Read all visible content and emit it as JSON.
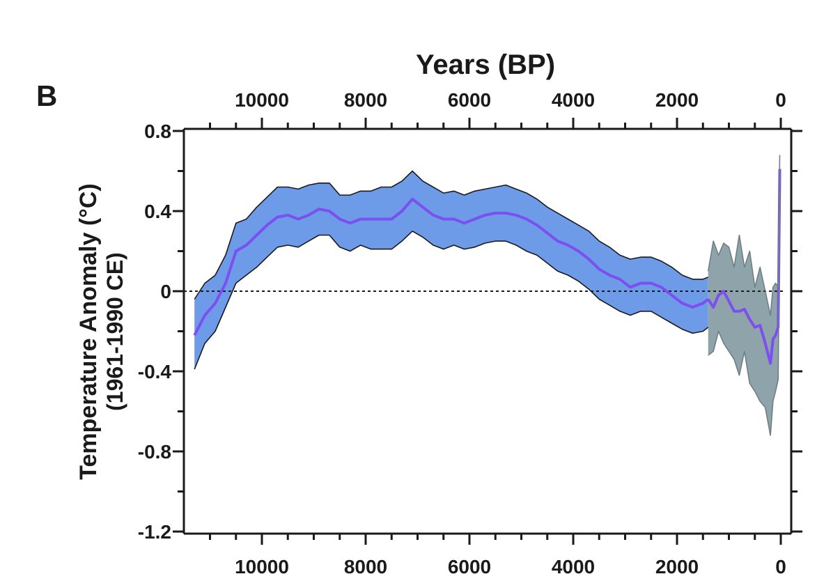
{
  "chart_data": {
    "type": "area",
    "panel_label": "B",
    "title": "Years (BP)",
    "xlabel": "",
    "ylabel": [
      "Temperature Anomaly (°C)",
      "(1961-1990 CE)"
    ],
    "x_ticks": [
      10000,
      8000,
      6000,
      4000,
      2000,
      0
    ],
    "y_ticks": [
      0.8,
      0.4,
      0,
      -0.4,
      -0.8,
      -1.2
    ],
    "y_tick_labels": [
      "0.8",
      "0.4",
      "0",
      "-0.4",
      "-0.8",
      "-1.2"
    ],
    "xlim": [
      11500,
      -100
    ],
    "ylim": [
      -1.2,
      0.8
    ],
    "x_reversed": true,
    "reference_line": 0,
    "series": [
      {
        "role": "holocene-mean",
        "color": "#7b4ff0",
        "x": [
          11300,
          11100,
          10900,
          10700,
          10500,
          10300,
          10100,
          9900,
          9700,
          9500,
          9300,
          9100,
          8900,
          8700,
          8500,
          8300,
          8100,
          7900,
          7700,
          7500,
          7300,
          7100,
          6900,
          6700,
          6500,
          6300,
          6100,
          5900,
          5700,
          5500,
          5300,
          5100,
          4900,
          4700,
          4500,
          4300,
          4100,
          3900,
          3700,
          3500,
          3300,
          3100,
          2900,
          2700,
          2500,
          2300,
          2100,
          1900,
          1700,
          1500,
          1400
        ],
        "values": [
          -0.22,
          -0.12,
          -0.06,
          0.04,
          0.2,
          0.23,
          0.28,
          0.33,
          0.37,
          0.38,
          0.36,
          0.38,
          0.41,
          0.4,
          0.36,
          0.34,
          0.36,
          0.36,
          0.36,
          0.36,
          0.4,
          0.46,
          0.42,
          0.38,
          0.36,
          0.36,
          0.34,
          0.36,
          0.38,
          0.39,
          0.39,
          0.38,
          0.36,
          0.33,
          0.29,
          0.25,
          0.23,
          0.2,
          0.16,
          0.11,
          0.08,
          0.06,
          0.02,
          0.04,
          0.04,
          0.02,
          -0.02,
          -0.06,
          -0.08,
          -0.06,
          -0.04
        ]
      },
      {
        "role": "holocene-upper-bound",
        "color": "#1a1a1a",
        "x": [
          11300,
          11100,
          10900,
          10700,
          10500,
          10300,
          10100,
          9900,
          9700,
          9500,
          9300,
          9100,
          8900,
          8700,
          8500,
          8300,
          8100,
          7900,
          7700,
          7500,
          7300,
          7100,
          6900,
          6700,
          6500,
          6300,
          6100,
          5900,
          5700,
          5500,
          5300,
          5100,
          4900,
          4700,
          4500,
          4300,
          4100,
          3900,
          3700,
          3500,
          3300,
          3100,
          2900,
          2700,
          2500,
          2300,
          2100,
          1900,
          1700,
          1500,
          1400
        ],
        "values": [
          -0.04,
          0.04,
          0.08,
          0.18,
          0.34,
          0.36,
          0.42,
          0.47,
          0.52,
          0.52,
          0.51,
          0.53,
          0.54,
          0.54,
          0.48,
          0.48,
          0.5,
          0.5,
          0.52,
          0.52,
          0.55,
          0.6,
          0.55,
          0.52,
          0.49,
          0.5,
          0.48,
          0.5,
          0.51,
          0.52,
          0.53,
          0.51,
          0.49,
          0.46,
          0.42,
          0.39,
          0.36,
          0.33,
          0.3,
          0.25,
          0.22,
          0.18,
          0.16,
          0.17,
          0.17,
          0.15,
          0.12,
          0.08,
          0.06,
          0.06,
          0.07
        ]
      },
      {
        "role": "holocene-lower-bound",
        "color": "#1a1a1a",
        "x": [
          11300,
          11100,
          10900,
          10700,
          10500,
          10300,
          10100,
          9900,
          9700,
          9500,
          9300,
          9100,
          8900,
          8700,
          8500,
          8300,
          8100,
          7900,
          7700,
          7500,
          7300,
          7100,
          6900,
          6700,
          6500,
          6300,
          6100,
          5900,
          5700,
          5500,
          5300,
          5100,
          4900,
          4700,
          4500,
          4300,
          4100,
          3900,
          3700,
          3500,
          3300,
          3100,
          2900,
          2700,
          2500,
          2300,
          2100,
          1900,
          1700,
          1500,
          1400
        ],
        "values": [
          -0.39,
          -0.26,
          -0.2,
          -0.08,
          0.04,
          0.08,
          0.12,
          0.17,
          0.22,
          0.23,
          0.22,
          0.25,
          0.28,
          0.28,
          0.22,
          0.2,
          0.23,
          0.21,
          0.21,
          0.21,
          0.25,
          0.3,
          0.27,
          0.23,
          0.21,
          0.23,
          0.21,
          0.22,
          0.24,
          0.25,
          0.25,
          0.23,
          0.2,
          0.18,
          0.14,
          0.1,
          0.08,
          0.05,
          0.01,
          -0.04,
          -0.07,
          -0.1,
          -0.12,
          -0.1,
          -0.1,
          -0.13,
          -0.16,
          -0.19,
          -0.21,
          -0.2,
          -0.18
        ]
      },
      {
        "role": "recent-mean",
        "color": "#7b4ff0",
        "x": [
          1400,
          1300,
          1200,
          1100,
          1000,
          900,
          800,
          700,
          600,
          500,
          400,
          300,
          200,
          150,
          100,
          50,
          20
        ],
        "values": [
          -0.04,
          -0.08,
          -0.02,
          0.0,
          -0.05,
          -0.1,
          -0.1,
          -0.09,
          -0.14,
          -0.18,
          -0.17,
          -0.26,
          -0.36,
          -0.24,
          -0.22,
          -0.18,
          0.61
        ]
      },
      {
        "role": "recent-upper-bound",
        "color": "#6e7f86",
        "x": [
          1400,
          1300,
          1200,
          1100,
          1000,
          900,
          800,
          700,
          600,
          500,
          400,
          300,
          200,
          150,
          100,
          50,
          20
        ],
        "values": [
          0.1,
          0.25,
          0.18,
          0.24,
          0.22,
          0.12,
          0.28,
          0.12,
          0.2,
          0.02,
          0.12,
          0.0,
          -0.12,
          0.02,
          0.04,
          0.02,
          0.68
        ]
      },
      {
        "role": "recent-lower-bound",
        "color": "#6e7f86",
        "x": [
          1400,
          1300,
          1200,
          1100,
          1000,
          900,
          800,
          700,
          600,
          500,
          400,
          300,
          200,
          150,
          100,
          50,
          20
        ],
        "values": [
          -0.32,
          -0.3,
          -0.2,
          -0.26,
          -0.3,
          -0.34,
          -0.42,
          -0.3,
          -0.46,
          -0.5,
          -0.55,
          -0.58,
          -0.72,
          -0.55,
          -0.5,
          -0.44,
          0.5
        ]
      }
    ],
    "colors": {
      "band": "#6e9be8",
      "band_outline": "#1a1a1a",
      "recent_band": "#8fa3aa",
      "mean_line": "#7b4ff0",
      "axis": "#1a1a1a"
    }
  }
}
